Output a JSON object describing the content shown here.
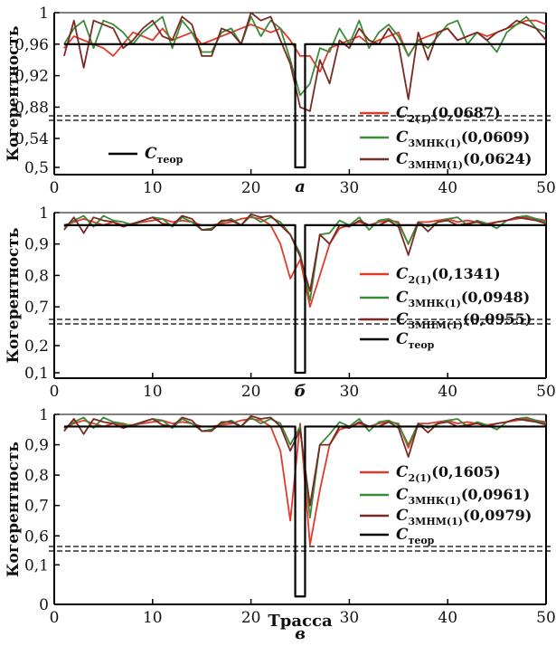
{
  "colors": {
    "c2": "#e03a2a",
    "cmnk": "#3a8a3a",
    "cmnm": "#7a2a22",
    "theory": "#000000"
  },
  "x_axis": {
    "label": "Трасса",
    "ticks": [
      "0",
      "10",
      "20",
      "30",
      "40",
      "50"
    ]
  },
  "chart_data": [
    {
      "type": "line",
      "panel_label": "а",
      "ylabel": "Когерентность",
      "xlim": [
        0,
        50
      ],
      "upper_ticks": [
        "1",
        "0,96",
        "0,92",
        "0,88"
      ],
      "lower_ticks": [
        "0,54",
        "0,5"
      ],
      "upper_range": [
        0.869,
        1.0
      ],
      "lower_range": [
        0.49,
        0.565
      ],
      "legend": [
        {
          "key": "c2",
          "main": "C",
          "sub": "2(1)",
          "value": "(0,0687)"
        },
        {
          "key": "cmnk",
          "main": "C",
          "sub": "3МНК(1)",
          "value": "(0,0609)"
        },
        {
          "key": "cmnm",
          "main": "C",
          "sub": "3МНМ(1)",
          "value": "(0,0624)"
        },
        {
          "key": "theory",
          "main": "C",
          "sub": "теор",
          "value": ""
        }
      ],
      "x": [
        1,
        2,
        3,
        4,
        5,
        6,
        7,
        8,
        9,
        10,
        11,
        12,
        13,
        14,
        15,
        16,
        17,
        18,
        19,
        20,
        21,
        22,
        23,
        24,
        25,
        26,
        27,
        28,
        29,
        30,
        31,
        32,
        33,
        34,
        35,
        36,
        37,
        38,
        39,
        40,
        41,
        42,
        43,
        44,
        45,
        46,
        47,
        48,
        49,
        50
      ],
      "series": [
        {
          "key": "c2",
          "values": [
            0.955,
            0.97,
            0.965,
            0.96,
            0.955,
            0.945,
            0.96,
            0.975,
            0.97,
            0.965,
            0.98,
            0.965,
            0.97,
            0.975,
            0.96,
            0.965,
            0.97,
            0.975,
            0.98,
            0.985,
            0.98,
            0.975,
            0.98,
            0.965,
            0.945,
            0.945,
            0.925,
            0.955,
            0.96,
            0.965,
            0.97,
            0.96,
            0.965,
            0.97,
            0.975,
            0.945,
            0.965,
            0.97,
            0.975,
            0.98,
            0.965,
            0.97,
            0.975,
            0.97,
            0.975,
            0.98,
            0.985,
            0.99,
            0.99,
            0.985
          ]
        },
        {
          "key": "cmnk",
          "values": [
            0.96,
            0.98,
            0.99,
            0.955,
            0.99,
            0.985,
            0.975,
            0.96,
            0.975,
            0.985,
            0.995,
            0.955,
            0.99,
            0.975,
            0.95,
            0.95,
            0.975,
            0.98,
            0.96,
            0.995,
            0.97,
            0.99,
            0.98,
            0.94,
            0.895,
            0.91,
            0.955,
            0.95,
            0.98,
            0.96,
            0.99,
            0.955,
            0.975,
            0.985,
            0.97,
            0.945,
            0.965,
            0.955,
            0.97,
            0.985,
            0.99,
            0.96,
            0.975,
            0.965,
            0.95,
            0.975,
            0.985,
            0.995,
            0.98,
            0.975
          ]
        },
        {
          "key": "cmnm",
          "values": [
            0.945,
            0.99,
            0.93,
            0.99,
            0.985,
            0.98,
            0.955,
            0.965,
            0.98,
            0.99,
            0.97,
            0.965,
            0.995,
            0.985,
            0.945,
            0.945,
            0.98,
            0.975,
            0.96,
            1.0,
            0.99,
            0.995,
            0.965,
            0.935,
            0.88,
            0.875,
            0.94,
            0.91,
            0.965,
            0.955,
            0.98,
            0.965,
            0.96,
            0.98,
            0.96,
            0.89,
            0.975,
            0.94,
            0.975,
            0.98,
            0.965,
            0.97,
            0.975,
            0.965,
            0.975,
            0.98,
            0.99,
            0.985,
            0.98,
            0.965
          ]
        },
        {
          "key": "theory",
          "values": [
            0.96,
            0.96,
            0.96,
            0.96,
            0.96,
            0.96,
            0.96,
            0.96,
            0.96,
            0.96,
            0.96,
            0.96,
            0.96,
            0.96,
            0.96,
            0.96,
            0.96,
            0.96,
            0.96,
            0.96,
            0.96,
            0.96,
            0.96,
            0.96,
            0.5,
            0.96,
            0.96,
            0.96,
            0.96,
            0.96,
            0.96,
            0.96,
            0.96,
            0.96,
            0.96,
            0.96,
            0.96,
            0.96,
            0.96,
            0.96,
            0.96,
            0.96,
            0.96,
            0.96,
            0.96,
            0.96,
            0.96,
            0.96,
            0.96,
            0.96
          ]
        }
      ]
    },
    {
      "type": "line",
      "panel_label": "б",
      "ylabel": "Когерентность",
      "xlim": [
        0,
        50
      ],
      "upper_ticks": [
        "1",
        "0,9",
        "0,8",
        "0,7"
      ],
      "lower_ticks": [
        "0,2",
        "0,1"
      ],
      "upper_range": [
        0.66,
        1.0
      ],
      "lower_range": [
        0.08,
        0.28
      ],
      "legend": [
        {
          "key": "c2",
          "main": "C",
          "sub": "2(1)",
          "value": "(0,1341)"
        },
        {
          "key": "cmnk",
          "main": "C",
          "sub": "3МНК(1)",
          "value": "(0,0948)"
        },
        {
          "key": "cmnm",
          "main": "C",
          "sub": "3МНМ(1)",
          "value": "(0,0955)"
        },
        {
          "key": "theory",
          "main": "C",
          "sub": "теор",
          "value": ""
        }
      ],
      "x": [
        1,
        2,
        3,
        4,
        5,
        6,
        7,
        8,
        9,
        10,
        11,
        12,
        13,
        14,
        15,
        16,
        17,
        18,
        19,
        20,
        21,
        22,
        23,
        24,
        25,
        26,
        27,
        28,
        29,
        30,
        31,
        32,
        33,
        34,
        35,
        36,
        37,
        38,
        39,
        40,
        41,
        42,
        43,
        44,
        45,
        46,
        47,
        48,
        49,
        50
      ],
      "series": [
        {
          "key": "c2",
          "values": [
            0.96,
            0.97,
            0.98,
            0.97,
            0.96,
            0.97,
            0.96,
            0.965,
            0.97,
            0.975,
            0.98,
            0.97,
            0.975,
            0.97,
            0.96,
            0.96,
            0.965,
            0.97,
            0.98,
            0.985,
            0.98,
            0.96,
            0.9,
            0.79,
            0.85,
            0.7,
            0.8,
            0.9,
            0.95,
            0.96,
            0.97,
            0.96,
            0.97,
            0.975,
            0.97,
            0.9,
            0.97,
            0.97,
            0.975,
            0.98,
            0.97,
            0.975,
            0.97,
            0.965,
            0.97,
            0.975,
            0.98,
            0.985,
            0.98,
            0.975
          ]
        },
        {
          "key": "cmnk",
          "values": [
            0.955,
            0.975,
            0.99,
            0.955,
            0.99,
            0.975,
            0.97,
            0.96,
            0.975,
            0.985,
            0.98,
            0.955,
            0.985,
            0.97,
            0.945,
            0.95,
            0.97,
            0.98,
            0.96,
            0.99,
            0.97,
            0.985,
            0.97,
            0.93,
            0.87,
            0.72,
            0.93,
            0.935,
            0.975,
            0.96,
            0.985,
            0.945,
            0.975,
            0.98,
            0.965,
            0.9,
            0.97,
            0.955,
            0.97,
            0.98,
            0.985,
            0.96,
            0.975,
            0.965,
            0.95,
            0.975,
            0.985,
            0.99,
            0.98,
            0.97
          ]
        },
        {
          "key": "cmnm",
          "values": [
            0.945,
            0.985,
            0.935,
            0.985,
            0.975,
            0.97,
            0.955,
            0.965,
            0.975,
            0.985,
            0.965,
            0.96,
            0.99,
            0.98,
            0.945,
            0.945,
            0.975,
            0.975,
            0.96,
            0.995,
            0.985,
            0.99,
            0.96,
            0.93,
            0.86,
            0.75,
            0.93,
            0.9,
            0.96,
            0.955,
            0.975,
            0.96,
            0.96,
            0.975,
            0.955,
            0.865,
            0.97,
            0.94,
            0.97,
            0.975,
            0.96,
            0.965,
            0.97,
            0.96,
            0.97,
            0.975,
            0.985,
            0.98,
            0.975,
            0.965
          ]
        },
        {
          "key": "theory",
          "values": [
            0.96,
            0.96,
            0.96,
            0.96,
            0.96,
            0.96,
            0.96,
            0.96,
            0.96,
            0.96,
            0.96,
            0.96,
            0.96,
            0.96,
            0.96,
            0.96,
            0.96,
            0.96,
            0.96,
            0.96,
            0.96,
            0.96,
            0.96,
            0.96,
            0.1,
            0.96,
            0.96,
            0.96,
            0.96,
            0.96,
            0.96,
            0.96,
            0.96,
            0.96,
            0.96,
            0.96,
            0.96,
            0.96,
            0.96,
            0.96,
            0.96,
            0.96,
            0.96,
            0.96,
            0.96,
            0.96,
            0.96,
            0.96,
            0.96,
            0.96
          ]
        }
      ]
    },
    {
      "type": "line",
      "panel_label": "в",
      "ylabel": "Когерентность",
      "xlabel": "Трасса",
      "xlim": [
        0,
        50
      ],
      "upper_ticks": [
        "1",
        "0,9",
        "0,8",
        "0,7",
        "0,6"
      ],
      "lower_ticks": [
        "0,1",
        "0"
      ],
      "upper_range": [
        0.565,
        1.0
      ],
      "lower_range": [
        0.0,
        0.135
      ],
      "legend": [
        {
          "key": "c2",
          "main": "C",
          "sub": "2(1)",
          "value": "(0,1605)"
        },
        {
          "key": "cmnk",
          "main": "C",
          "sub": "3МНК(1)",
          "value": "(0,0961)"
        },
        {
          "key": "cmnm",
          "main": "C",
          "sub": "3МНМ(1)",
          "value": "(0,0979)"
        },
        {
          "key": "theory",
          "main": "C",
          "sub": "теор",
          "value": ""
        }
      ],
      "x": [
        1,
        2,
        3,
        4,
        5,
        6,
        7,
        8,
        9,
        10,
        11,
        12,
        13,
        14,
        15,
        16,
        17,
        18,
        19,
        20,
        21,
        22,
        23,
        24,
        25,
        26,
        27,
        28,
        29,
        30,
        31,
        32,
        33,
        34,
        35,
        36,
        37,
        38,
        39,
        40,
        41,
        42,
        43,
        44,
        45,
        46,
        47,
        48,
        49,
        50
      ],
      "series": [
        {
          "key": "c2",
          "values": [
            0.955,
            0.97,
            0.98,
            0.97,
            0.96,
            0.97,
            0.965,
            0.965,
            0.97,
            0.975,
            0.98,
            0.97,
            0.975,
            0.97,
            0.96,
            0.96,
            0.965,
            0.97,
            0.98,
            0.985,
            0.98,
            0.96,
            0.88,
            0.65,
            0.97,
            0.57,
            0.75,
            0.9,
            0.95,
            0.96,
            0.97,
            0.96,
            0.97,
            0.975,
            0.97,
            0.89,
            0.97,
            0.97,
            0.975,
            0.98,
            0.97,
            0.975,
            0.97,
            0.965,
            0.97,
            0.975,
            0.98,
            0.985,
            0.98,
            0.975
          ]
        },
        {
          "key": "cmnk",
          "values": [
            0.955,
            0.975,
            0.99,
            0.955,
            0.99,
            0.975,
            0.97,
            0.96,
            0.975,
            0.985,
            0.98,
            0.955,
            0.985,
            0.97,
            0.945,
            0.95,
            0.97,
            0.98,
            0.96,
            0.99,
            0.97,
            0.985,
            0.97,
            0.9,
            0.96,
            0.66,
            0.9,
            0.935,
            0.975,
            0.96,
            0.985,
            0.945,
            0.975,
            0.98,
            0.965,
            0.9,
            0.97,
            0.955,
            0.97,
            0.98,
            0.985,
            0.96,
            0.975,
            0.965,
            0.95,
            0.975,
            0.985,
            0.99,
            0.98,
            0.97
          ]
        },
        {
          "key": "cmnm",
          "values": [
            0.945,
            0.985,
            0.935,
            0.985,
            0.975,
            0.97,
            0.955,
            0.965,
            0.975,
            0.985,
            0.965,
            0.96,
            0.99,
            0.98,
            0.945,
            0.945,
            0.975,
            0.975,
            0.96,
            0.995,
            0.985,
            0.99,
            0.96,
            0.88,
            0.95,
            0.7,
            0.9,
            0.9,
            0.96,
            0.955,
            0.975,
            0.96,
            0.96,
            0.975,
            0.955,
            0.86,
            0.97,
            0.94,
            0.97,
            0.975,
            0.96,
            0.965,
            0.97,
            0.96,
            0.97,
            0.975,
            0.985,
            0.98,
            0.975,
            0.965
          ]
        },
        {
          "key": "theory",
          "values": [
            0.96,
            0.96,
            0.96,
            0.96,
            0.96,
            0.96,
            0.96,
            0.96,
            0.96,
            0.96,
            0.96,
            0.96,
            0.96,
            0.96,
            0.96,
            0.96,
            0.96,
            0.96,
            0.96,
            0.96,
            0.96,
            0.96,
            0.96,
            0.96,
            0.02,
            0.96,
            0.96,
            0.96,
            0.96,
            0.96,
            0.96,
            0.96,
            0.96,
            0.96,
            0.96,
            0.96,
            0.96,
            0.96,
            0.96,
            0.96,
            0.96,
            0.96,
            0.96,
            0.96,
            0.96,
            0.96,
            0.96,
            0.96,
            0.96,
            0.96
          ]
        }
      ]
    }
  ]
}
